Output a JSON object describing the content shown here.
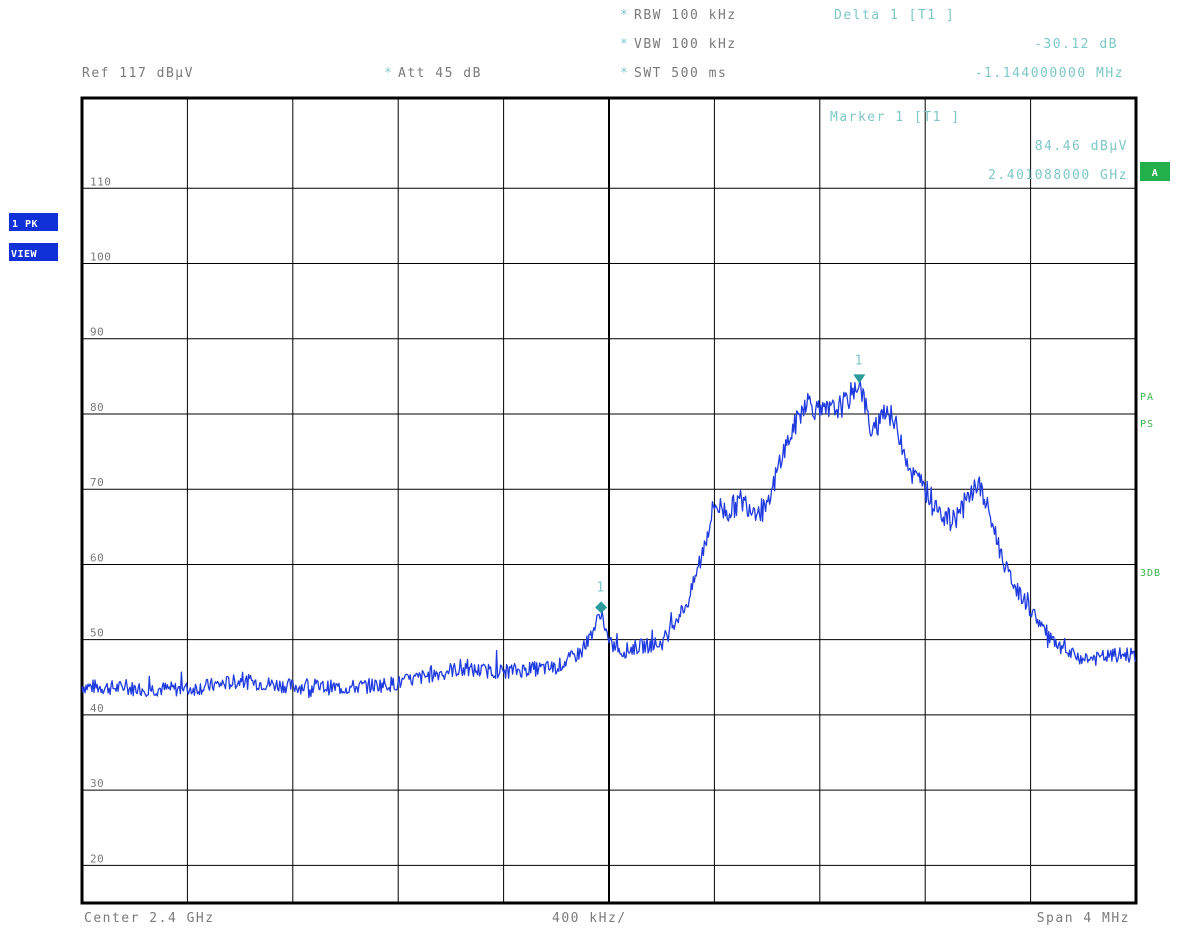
{
  "header": {
    "ref": "Ref  117 dBµV",
    "att": "Att  45 dB",
    "rbw": "RBW 100 kHz",
    "vbw": "VBW 100 kHz",
    "swt": "SWT 500 ms",
    "delta_title": "Delta 1 [T1 ]",
    "delta_level": "-30.12 dB",
    "delta_freq": "-1.144000000 MHz",
    "marker_title": "Marker 1 [T1 ]",
    "marker_level": "84.46 dBµV",
    "marker_freq": "2.401088000 GHz",
    "star": "*"
  },
  "side": {
    "trace_badge_top": "1 PK",
    "trace_badge_bottom": "VIEW",
    "screen_badge": "A",
    "pa": "PA",
    "ps": "PS",
    "db3": "3DB"
  },
  "footer": {
    "center": "Center 2.4 GHz",
    "per_div": "400 kHz/",
    "span": "Span 4 MHz"
  },
  "markers": {
    "marker1_label": "1",
    "delta1_label": "1"
  },
  "colors": {
    "trace": "#1f3be0",
    "marker": "#2a9a9a",
    "grid": "#000000",
    "badge": "#1030d8",
    "side_text": "#3cb44b"
  },
  "chart_data": {
    "type": "line",
    "x_unit": "MHz offset from center 2.4 GHz",
    "xlim": [
      -2,
      2
    ],
    "ylim": [
      15,
      122
    ],
    "ytick_labels": [
      "110",
      "100",
      "90",
      "80",
      "70",
      "60",
      "50",
      "40",
      "30",
      "20"
    ],
    "grid": true,
    "series": [
      {
        "values_x": [
          -2.0,
          -1.8,
          -1.6,
          -1.4,
          -1.2,
          -1.0,
          -0.8,
          -0.6,
          -0.4,
          -0.2,
          -0.1,
          -0.05,
          -0.03,
          0.0,
          0.05,
          0.1,
          0.2,
          0.25,
          0.3,
          0.35,
          0.4,
          0.45,
          0.5,
          0.55,
          0.6,
          0.65,
          0.7,
          0.75,
          0.8,
          0.85,
          0.9,
          0.95,
          1.0,
          1.05,
          1.1,
          1.15,
          1.2,
          1.25,
          1.3,
          1.35,
          1.4,
          1.45,
          1.5,
          1.55,
          1.6,
          1.65,
          1.7,
          1.75,
          1.8,
          1.85,
          1.9,
          1.95,
          2.0
        ],
        "values_y": [
          43.8,
          43.5,
          43.4,
          44.5,
          43.8,
          43.6,
          44.2,
          46.0,
          45.8,
          46.3,
          48.5,
          52.0,
          53.8,
          49.5,
          48.4,
          49.0,
          49.5,
          52.5,
          55.0,
          61.0,
          68.0,
          67.0,
          68.5,
          67.5,
          67.0,
          74.0,
          78.0,
          82.0,
          80.0,
          80.5,
          81.5,
          84.5,
          77.0,
          81.0,
          77.5,
          72.0,
          70.0,
          67.5,
          65.5,
          68.0,
          71.0,
          66.0,
          60.0,
          56.5,
          54.0,
          51.5,
          49.0,
          48.0,
          47.5,
          47.5,
          47.8,
          48.0,
          48.0
        ],
        "noise_amplitude": 1.0
      }
    ],
    "marker_points": [
      {
        "label": "1",
        "x": 0.95,
        "y": 84.46,
        "kind": "marker"
      },
      {
        "label": "1",
        "x": -0.03,
        "y": 54.3,
        "kind": "delta"
      }
    ]
  }
}
